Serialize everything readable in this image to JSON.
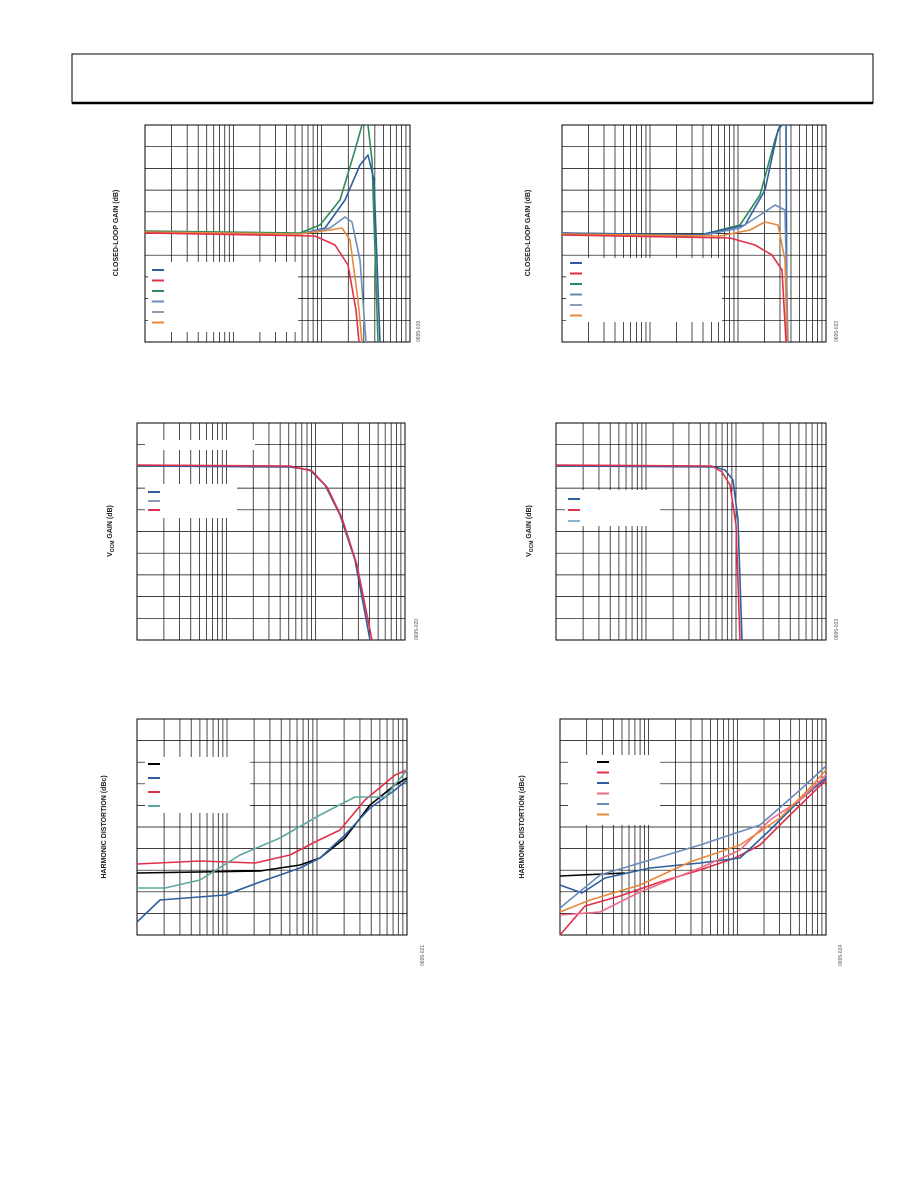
{
  "charts": [
    {
      "y_label": "CLOSED-LOOP GAIN (dB)",
      "figure_id": "0695-019"
    },
    {
      "y_label_prefix": "V",
      "y_label_sub": "OCM",
      "y_label_suffix": " GAIN (dB)",
      "figure_id": "0695-020"
    },
    {
      "y_label": "HARMONIC DISTORTION (dBc)",
      "figure_id": "0695-021"
    },
    {
      "y_label": "CLOSED-LOOP GAIN (dB)",
      "figure_id": "0695-022"
    },
    {
      "y_label_prefix": "V",
      "y_label_sub": "OCM",
      "y_label_suffix": " GAIN (dB)",
      "figure_id": "0695-023"
    },
    {
      "y_label": "HARMONIC DISTORTION (dBc)",
      "figure_id": "0695-024"
    }
  ]
}
